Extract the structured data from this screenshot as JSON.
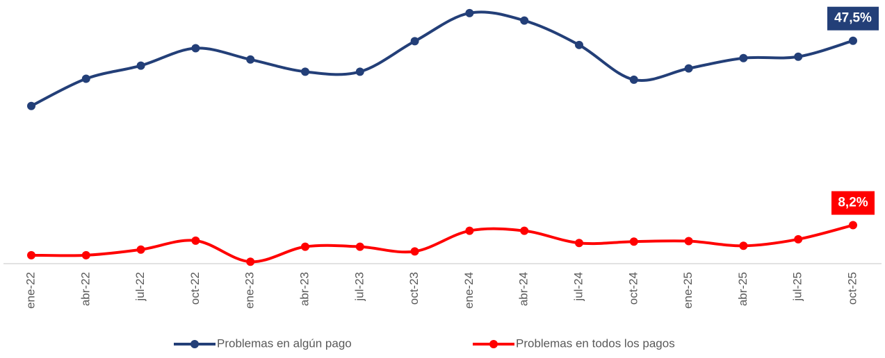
{
  "chart_data": {
    "type": "line",
    "categories": [
      "ene-22",
      "abr-22",
      "jul-22",
      "oct-22",
      "ene-23",
      "abr-23",
      "jul-23",
      "oct-23",
      "ene-24",
      "abr-24",
      "jul-24",
      "oct-24",
      "ene-25",
      "abr-25",
      "jul-25",
      "oct-25"
    ],
    "series": [
      {
        "name": "Problemas en algún pago",
        "color": "#233f78",
        "values": [
          33.6,
          39.4,
          42.2,
          45.9,
          43.5,
          40.9,
          40.9,
          47.4,
          53.4,
          51.8,
          46.6,
          39.2,
          41.6,
          43.8,
          44.1,
          47.5
        ],
        "value_labels": [
          null,
          null,
          null,
          null,
          null,
          null,
          null,
          null,
          null,
          null,
          null,
          null,
          null,
          null,
          null,
          "47,5%"
        ]
      },
      {
        "name": "Problemas en todos los pagos",
        "color": "#ff0000",
        "values": [
          1.8,
          1.8,
          3.0,
          4.9,
          0.4,
          3.6,
          3.6,
          2.6,
          7.0,
          7.0,
          4.4,
          4.7,
          4.8,
          3.8,
          5.2,
          8.2
        ],
        "value_labels": [
          null,
          null,
          null,
          null,
          null,
          null,
          null,
          null,
          null,
          null,
          null,
          null,
          null,
          null,
          null,
          "8,2%"
        ]
      }
    ],
    "ylim": [
      0,
      55
    ],
    "legend": "bottom"
  }
}
